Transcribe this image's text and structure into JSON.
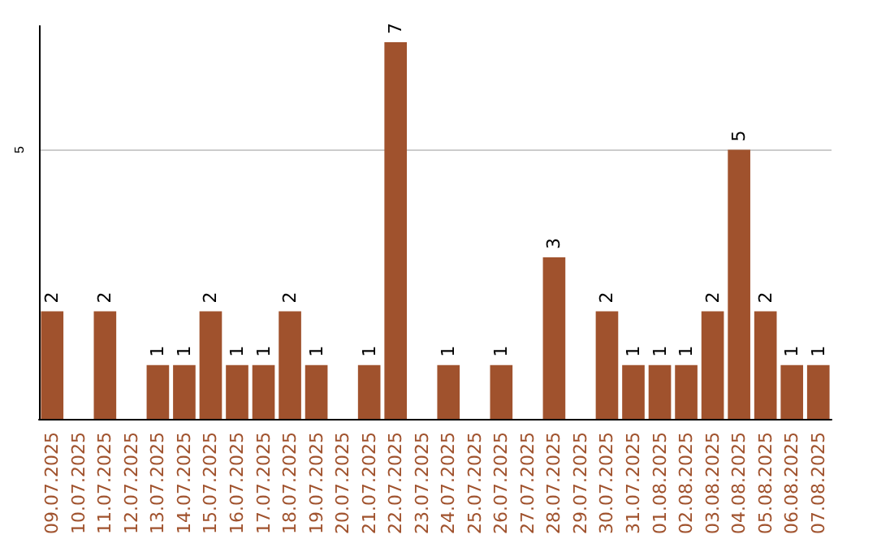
{
  "chart_data": {
    "type": "bar",
    "categories": [
      "09.07.2025",
      "10.07.2025",
      "11.07.2025",
      "12.07.2025",
      "13.07.2025",
      "14.07.2025",
      "15.07.2025",
      "16.07.2025",
      "17.07.2025",
      "18.07.2025",
      "19.07.2025",
      "20.07.2025",
      "21.07.2025",
      "22.07.2025",
      "23.07.2025",
      "24.07.2025",
      "25.07.2025",
      "26.07.2025",
      "27.07.2025",
      "28.07.2025",
      "29.07.2025",
      "30.07.2025",
      "31.07.2025",
      "01.08.2025",
      "02.08.2025",
      "03.08.2025",
      "04.08.2025",
      "05.08.2025",
      "06.08.2025",
      "07.08.2025"
    ],
    "values": [
      2,
      0,
      2,
      0,
      1,
      1,
      2,
      1,
      1,
      2,
      1,
      0,
      1,
      7,
      0,
      1,
      0,
      1,
      0,
      3,
      0,
      2,
      1,
      1,
      1,
      2,
      5,
      2,
      1,
      1
    ],
    "value_labels": [
      "2",
      null,
      "2",
      null,
      "1",
      "1",
      "2",
      "1",
      "1",
      "2",
      "1",
      null,
      "1",
      "7",
      null,
      "1",
      null,
      "1",
      null,
      "3",
      null,
      "2",
      "1",
      "1",
      "1",
      "2",
      "5",
      "2",
      "1",
      "1"
    ],
    "color": "#a0522d",
    "ylim": [
      0,
      7.3
    ],
    "yticks": [
      5
    ],
    "grid": "y"
  }
}
